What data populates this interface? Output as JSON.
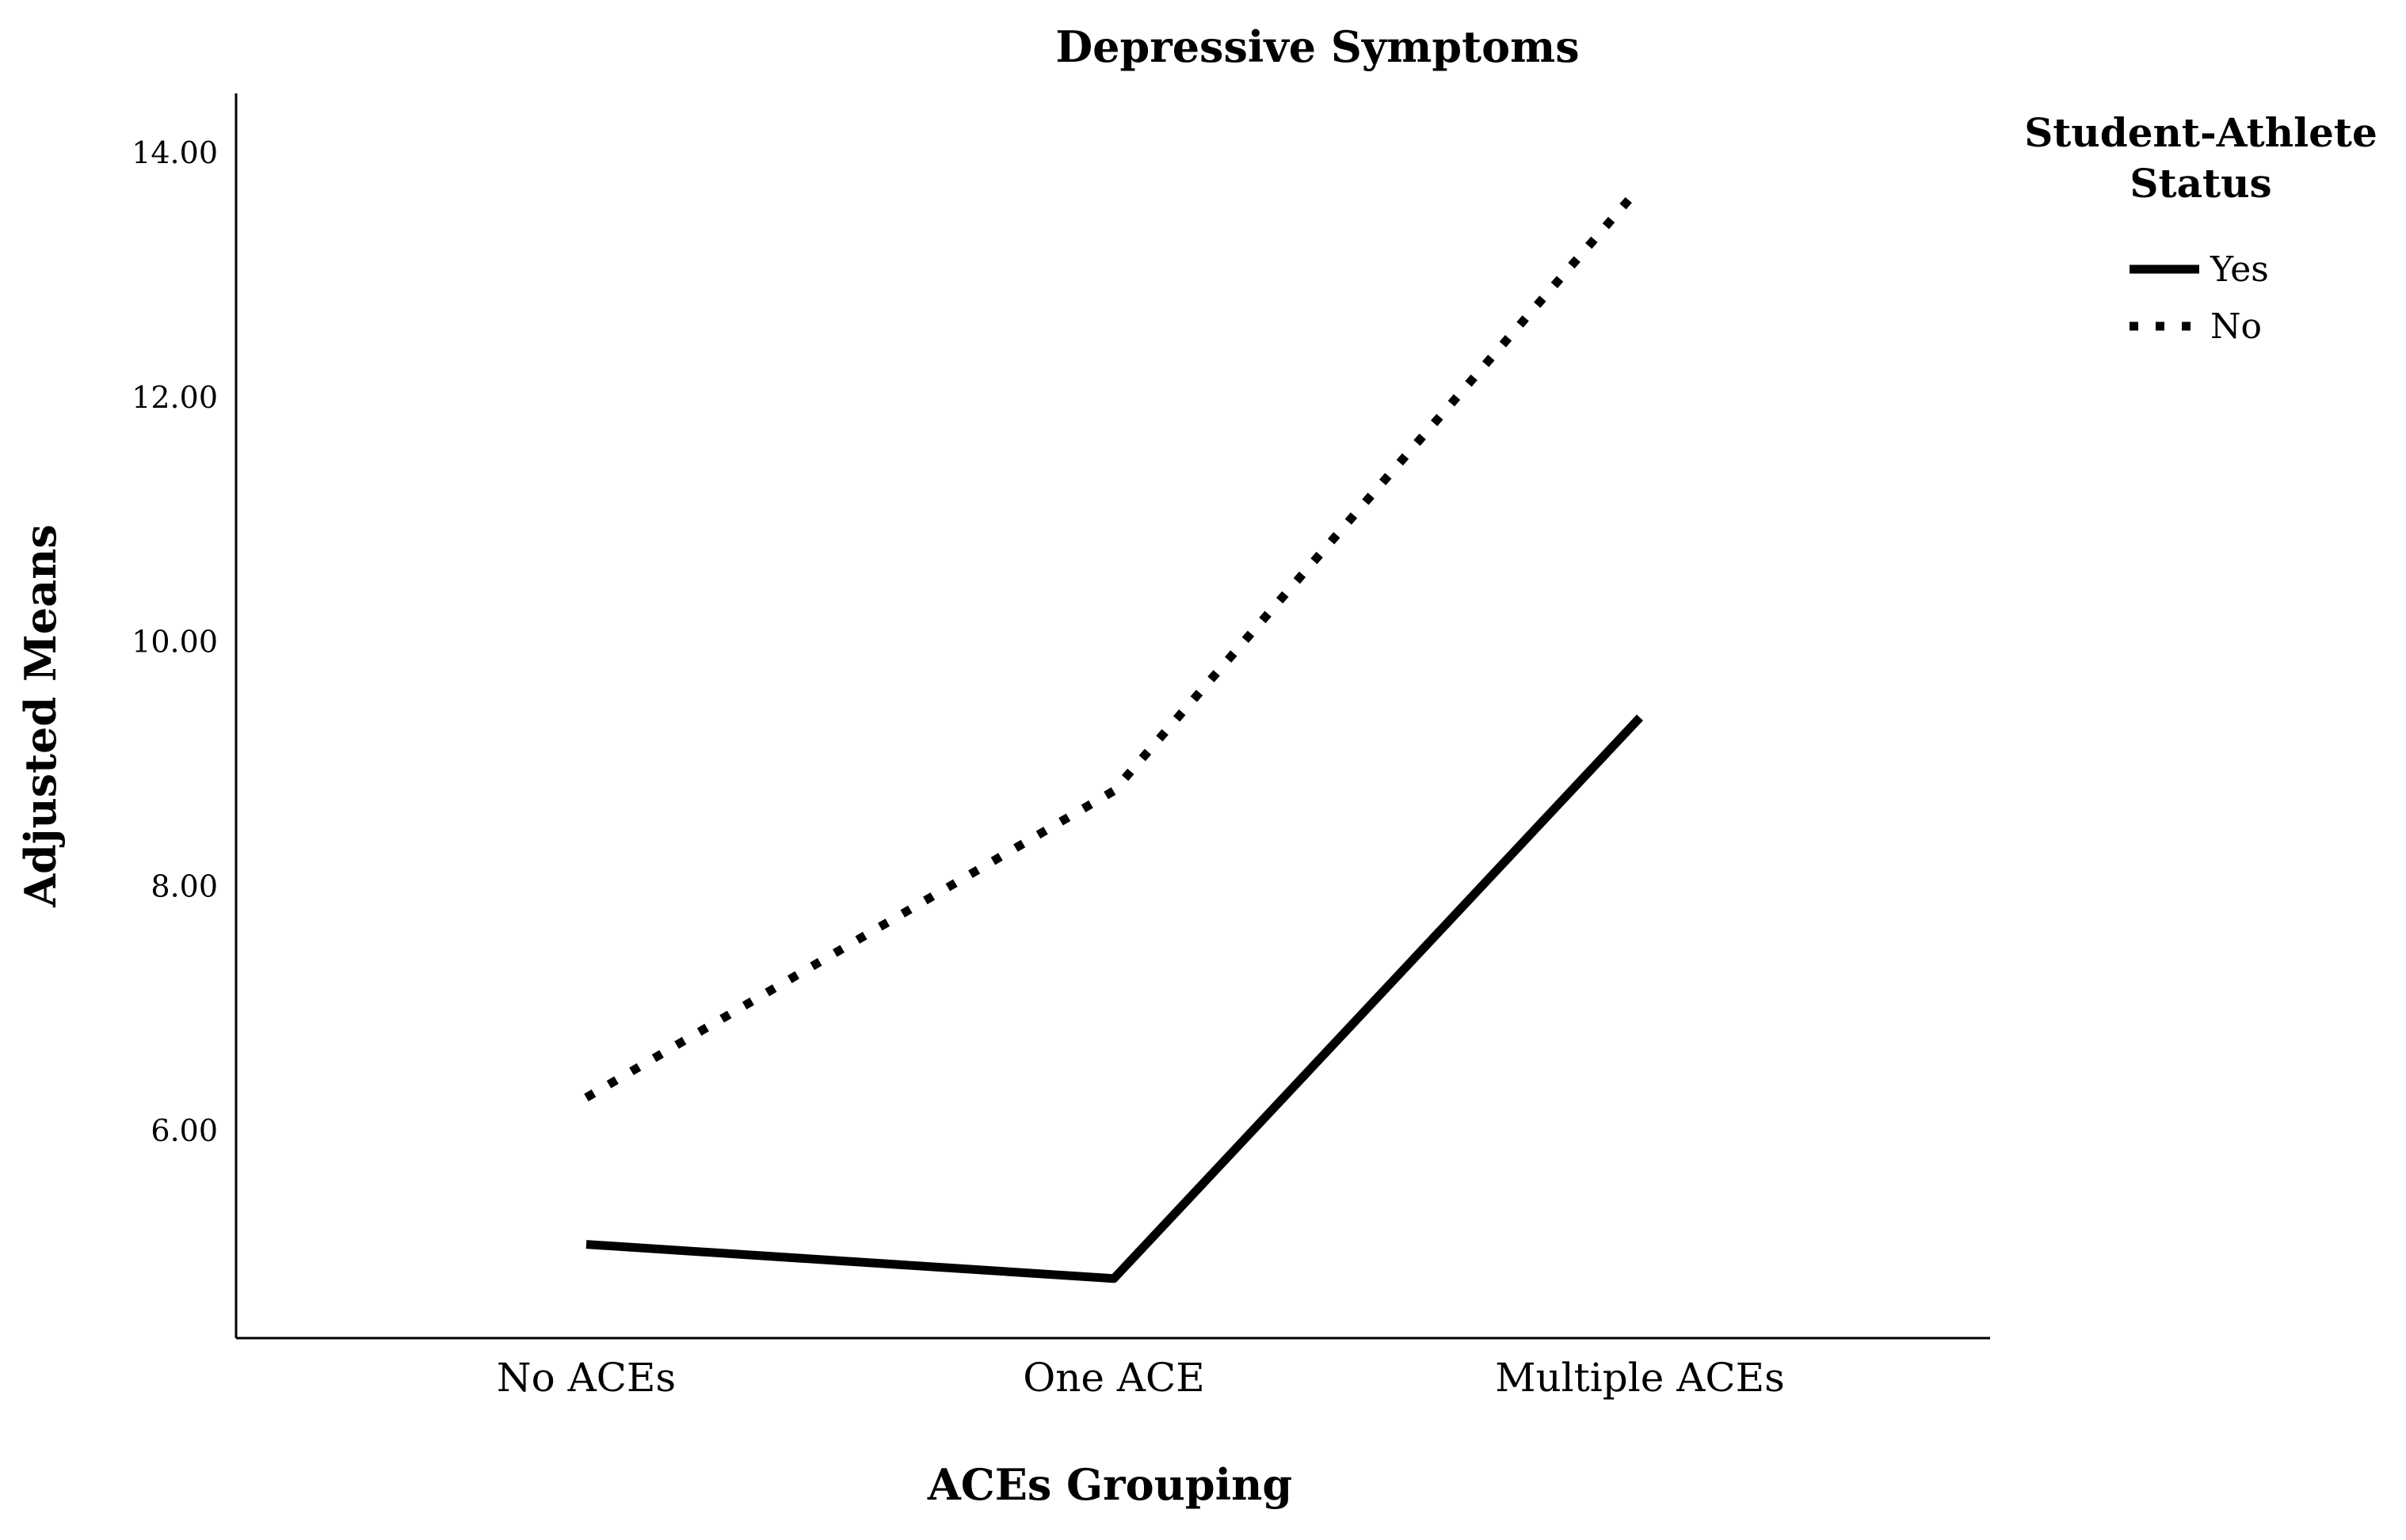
{
  "chart_data": {
    "type": "line",
    "title": "Depressive Symptoms",
    "xlabel": "ACEs Grouping",
    "ylabel": "Adjusted Means",
    "categories": [
      "No ACEs",
      "One ACE",
      "Multiple ACEs"
    ],
    "yticks": [
      "6.00",
      "8.00",
      "10.00",
      "12.00",
      "14.00"
    ],
    "ytick_values": [
      6,
      8,
      10,
      12,
      14
    ],
    "ylim": [
      4.3,
      14.5
    ],
    "legend": {
      "title_lines": [
        "Student-Athlete",
        "Status"
      ],
      "position": "top-right outside"
    },
    "series": [
      {
        "name": "Yes",
        "values": [
          5.07,
          4.79,
          9.38
        ],
        "style": "solid",
        "color": "#000000"
      },
      {
        "name": "No",
        "values": [
          6.27,
          8.78,
          13.72
        ],
        "style": "dotted",
        "color": "#000000"
      }
    ],
    "grid": false
  }
}
